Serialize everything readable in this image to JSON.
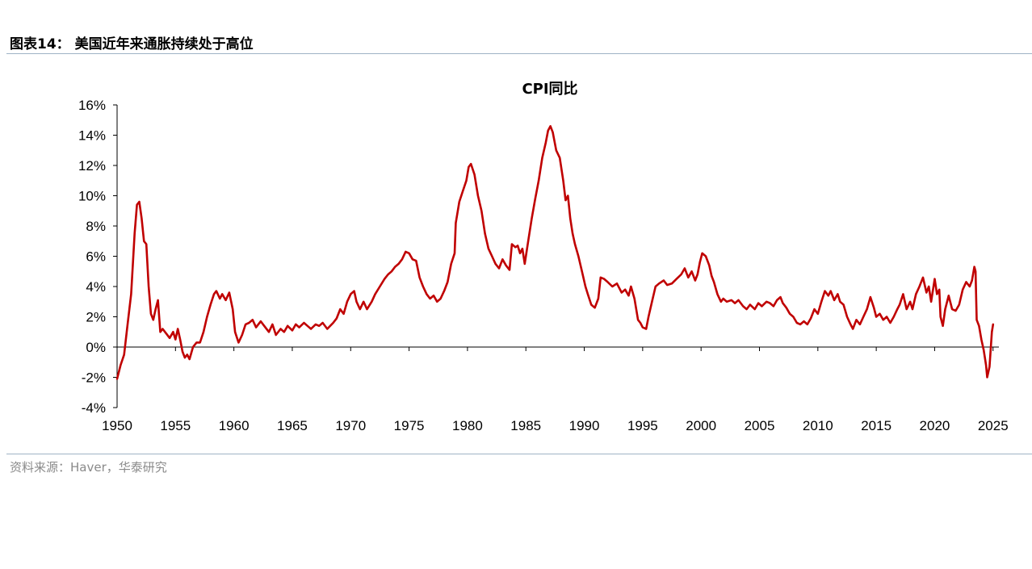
{
  "figure": {
    "title": "图表14： 美国近年来通胀持续处于高位",
    "source": "资料来源：Haver，华泰研究"
  },
  "chart_data": {
    "type": "line",
    "title": "CPI同比",
    "xlabel": "",
    "ylabel": "",
    "xlim": [
      1950,
      2025.5
    ],
    "ylim": [
      -4,
      16
    ],
    "x_ticks": [
      1950,
      1955,
      1960,
      1965,
      1970,
      1975,
      1980,
      1985,
      1990,
      1995,
      2000,
      2005,
      2010,
      2015,
      2020,
      2025
    ],
    "y_ticks": [
      -4,
      -2,
      0,
      2,
      4,
      6,
      8,
      10,
      12,
      14,
      16
    ],
    "y_tick_labels": [
      "-4%",
      "-2%",
      "0%",
      "2%",
      "4%",
      "6%",
      "8%",
      "10%",
      "12%",
      "14%",
      "16%"
    ],
    "x_tick_labels": [
      "1950",
      "1955",
      "1960",
      "1965",
      "1970",
      "1975",
      "1980",
      "1985",
      "1990",
      "1995",
      "2000",
      "2005",
      "2010",
      "2015",
      "2020",
      "2025"
    ],
    "legend": "none",
    "grid": false,
    "series": [
      {
        "color": "#c00000",
        "points": [
          [
            1950.0,
            -2.1
          ],
          [
            1950.3,
            -1.2
          ],
          [
            1950.6,
            -0.5
          ],
          [
            1950.9,
            1.5
          ],
          [
            1951.2,
            3.5
          ],
          [
            1951.5,
            7.5
          ],
          [
            1951.7,
            9.4
          ],
          [
            1951.9,
            9.6
          ],
          [
            1952.1,
            8.5
          ],
          [
            1952.3,
            7.0
          ],
          [
            1952.5,
            6.8
          ],
          [
            1952.7,
            4.0
          ],
          [
            1952.9,
            2.2
          ],
          [
            1953.1,
            1.8
          ],
          [
            1953.3,
            2.5
          ],
          [
            1953.5,
            3.1
          ],
          [
            1953.7,
            1.0
          ],
          [
            1953.9,
            1.2
          ],
          [
            1954.2,
            0.9
          ],
          [
            1954.5,
            0.6
          ],
          [
            1954.8,
            1.0
          ],
          [
            1955.0,
            0.5
          ],
          [
            1955.2,
            1.2
          ],
          [
            1955.4,
            0.5
          ],
          [
            1955.6,
            -0.3
          ],
          [
            1955.8,
            -0.7
          ],
          [
            1956.0,
            -0.5
          ],
          [
            1956.2,
            -0.8
          ],
          [
            1956.5,
            0.0
          ],
          [
            1956.8,
            0.3
          ],
          [
            1957.1,
            0.3
          ],
          [
            1957.4,
            1.0
          ],
          [
            1957.7,
            2.0
          ],
          [
            1958.0,
            2.8
          ],
          [
            1958.3,
            3.5
          ],
          [
            1958.5,
            3.7
          ],
          [
            1958.8,
            3.2
          ],
          [
            1959.0,
            3.5
          ],
          [
            1959.3,
            3.1
          ],
          [
            1959.6,
            3.6
          ],
          [
            1959.9,
            2.5
          ],
          [
            1960.1,
            1.0
          ],
          [
            1960.4,
            0.3
          ],
          [
            1960.7,
            0.8
          ],
          [
            1961.0,
            1.5
          ],
          [
            1961.3,
            1.6
          ],
          [
            1961.6,
            1.8
          ],
          [
            1961.9,
            1.3
          ],
          [
            1962.3,
            1.7
          ],
          [
            1962.6,
            1.4
          ],
          [
            1963.0,
            1.0
          ],
          [
            1963.3,
            1.5
          ],
          [
            1963.6,
            0.8
          ],
          [
            1964.0,
            1.2
          ],
          [
            1964.3,
            1.0
          ],
          [
            1964.6,
            1.4
          ],
          [
            1965.0,
            1.1
          ],
          [
            1965.3,
            1.5
          ],
          [
            1965.6,
            1.3
          ],
          [
            1966.0,
            1.6
          ],
          [
            1966.3,
            1.4
          ],
          [
            1966.6,
            1.2
          ],
          [
            1967.0,
            1.5
          ],
          [
            1967.3,
            1.4
          ],
          [
            1967.6,
            1.6
          ],
          [
            1968.0,
            1.2
          ],
          [
            1968.5,
            1.6
          ],
          [
            1968.8,
            1.9
          ],
          [
            1969.1,
            2.5
          ],
          [
            1969.4,
            2.2
          ],
          [
            1969.7,
            3.0
          ],
          [
            1970.0,
            3.5
          ],
          [
            1970.3,
            3.7
          ],
          [
            1970.5,
            3.0
          ],
          [
            1970.8,
            2.5
          ],
          [
            1971.1,
            3.0
          ],
          [
            1971.4,
            2.5
          ],
          [
            1971.8,
            3.0
          ],
          [
            1972.1,
            3.5
          ],
          [
            1972.5,
            4.0
          ],
          [
            1972.9,
            4.5
          ],
          [
            1973.2,
            4.8
          ],
          [
            1973.5,
            5.0
          ],
          [
            1973.8,
            5.3
          ],
          [
            1974.1,
            5.5
          ],
          [
            1974.4,
            5.8
          ],
          [
            1974.7,
            6.3
          ],
          [
            1975.0,
            6.2
          ],
          [
            1975.3,
            5.8
          ],
          [
            1975.6,
            5.7
          ],
          [
            1975.9,
            4.6
          ],
          [
            1976.2,
            4.0
          ],
          [
            1976.5,
            3.5
          ],
          [
            1976.8,
            3.2
          ],
          [
            1977.1,
            3.4
          ],
          [
            1977.4,
            3.0
          ],
          [
            1977.7,
            3.2
          ],
          [
            1978.0,
            3.7
          ],
          [
            1978.3,
            4.3
          ],
          [
            1978.6,
            5.5
          ],
          [
            1978.9,
            6.2
          ],
          [
            1979.0,
            8.2
          ],
          [
            1979.3,
            9.6
          ],
          [
            1979.6,
            10.3
          ],
          [
            1979.9,
            11.0
          ],
          [
            1980.1,
            11.9
          ],
          [
            1980.3,
            12.1
          ],
          [
            1980.6,
            11.4
          ],
          [
            1980.9,
            10.0
          ],
          [
            1981.2,
            9.0
          ],
          [
            1981.5,
            7.5
          ],
          [
            1981.8,
            6.5
          ],
          [
            1982.1,
            6.0
          ],
          [
            1982.4,
            5.5
          ],
          [
            1982.7,
            5.2
          ],
          [
            1983.0,
            5.8
          ],
          [
            1983.3,
            5.4
          ],
          [
            1983.6,
            5.1
          ],
          [
            1983.8,
            6.8
          ],
          [
            1984.1,
            6.6
          ],
          [
            1984.3,
            6.7
          ],
          [
            1984.5,
            6.2
          ],
          [
            1984.7,
            6.5
          ],
          [
            1984.9,
            5.5
          ],
          [
            1985.2,
            7.0
          ],
          [
            1985.5,
            8.5
          ],
          [
            1985.8,
            9.8
          ],
          [
            1986.1,
            11.0
          ],
          [
            1986.4,
            12.5
          ],
          [
            1986.7,
            13.5
          ],
          [
            1986.9,
            14.3
          ],
          [
            1987.1,
            14.6
          ],
          [
            1987.3,
            14.2
          ],
          [
            1987.6,
            13.0
          ],
          [
            1987.9,
            12.5
          ],
          [
            1988.2,
            11.0
          ],
          [
            1988.4,
            9.7
          ],
          [
            1988.6,
            10.0
          ],
          [
            1988.8,
            8.5
          ],
          [
            1989.0,
            7.5
          ],
          [
            1989.2,
            6.8
          ],
          [
            1989.5,
            6.0
          ],
          [
            1989.8,
            5.0
          ],
          [
            1990.1,
            4.0
          ],
          [
            1990.3,
            3.5
          ],
          [
            1990.6,
            2.8
          ],
          [
            1990.9,
            2.6
          ],
          [
            1991.2,
            3.2
          ],
          [
            1991.4,
            4.6
          ],
          [
            1991.7,
            4.5
          ],
          [
            1992.0,
            4.3
          ],
          [
            1992.4,
            4.0
          ],
          [
            1992.8,
            4.2
          ],
          [
            1993.2,
            3.6
          ],
          [
            1993.5,
            3.8
          ],
          [
            1993.8,
            3.4
          ],
          [
            1994.0,
            4.0
          ],
          [
            1994.3,
            3.2
          ],
          [
            1994.6,
            1.8
          ],
          [
            1994.8,
            1.6
          ],
          [
            1995.0,
            1.3
          ],
          [
            1995.3,
            1.2
          ],
          [
            1995.5,
            2.0
          ],
          [
            1995.8,
            3.0
          ],
          [
            1996.1,
            4.0
          ],
          [
            1996.4,
            4.2
          ],
          [
            1996.8,
            4.4
          ],
          [
            1997.1,
            4.1
          ],
          [
            1997.5,
            4.2
          ],
          [
            1997.9,
            4.5
          ],
          [
            1998.3,
            4.8
          ],
          [
            1998.6,
            5.2
          ],
          [
            1998.9,
            4.6
          ],
          [
            1999.2,
            5.0
          ],
          [
            1999.5,
            4.4
          ],
          [
            1999.7,
            4.8
          ],
          [
            1999.9,
            5.6
          ],
          [
            2000.1,
            6.2
          ],
          [
            2000.4,
            6.0
          ],
          [
            2000.7,
            5.4
          ],
          [
            2000.9,
            4.7
          ],
          [
            2001.1,
            4.3
          ],
          [
            2001.4,
            3.5
          ],
          [
            2001.7,
            3.0
          ],
          [
            2001.9,
            3.2
          ],
          [
            2002.2,
            3.0
          ],
          [
            2002.6,
            3.1
          ],
          [
            2002.9,
            2.9
          ],
          [
            2003.2,
            3.1
          ],
          [
            2003.6,
            2.7
          ],
          [
            2003.9,
            2.5
          ],
          [
            2004.2,
            2.8
          ],
          [
            2004.6,
            2.5
          ],
          [
            2004.9,
            2.9
          ],
          [
            2005.2,
            2.7
          ],
          [
            2005.6,
            3.0
          ],
          [
            2005.9,
            2.9
          ],
          [
            2006.2,
            2.7
          ],
          [
            2006.5,
            3.1
          ],
          [
            2006.8,
            3.3
          ],
          [
            2007.0,
            2.9
          ],
          [
            2007.3,
            2.6
          ],
          [
            2007.6,
            2.2
          ],
          [
            2007.9,
            2.0
          ],
          [
            2008.2,
            1.6
          ],
          [
            2008.5,
            1.5
          ],
          [
            2008.8,
            1.7
          ],
          [
            2009.1,
            1.5
          ],
          [
            2009.4,
            1.9
          ],
          [
            2009.7,
            2.5
          ],
          [
            2010.0,
            2.2
          ],
          [
            2010.3,
            3.0
          ],
          [
            2010.6,
            3.7
          ],
          [
            2010.9,
            3.4
          ],
          [
            2011.1,
            3.7
          ],
          [
            2011.4,
            3.1
          ],
          [
            2011.7,
            3.5
          ],
          [
            2011.9,
            3.0
          ],
          [
            2012.2,
            2.8
          ],
          [
            2012.5,
            2.0
          ],
          [
            2012.8,
            1.5
          ],
          [
            2013.0,
            1.2
          ],
          [
            2013.3,
            1.8
          ],
          [
            2013.6,
            1.5
          ],
          [
            2013.9,
            2.0
          ],
          [
            2014.2,
            2.5
          ],
          [
            2014.5,
            3.3
          ],
          [
            2014.8,
            2.6
          ],
          [
            2015.0,
            2.0
          ],
          [
            2015.3,
            2.2
          ],
          [
            2015.6,
            1.8
          ],
          [
            2015.9,
            2.0
          ],
          [
            2016.2,
            1.6
          ],
          [
            2016.5,
            2.0
          ],
          [
            2016.8,
            2.5
          ],
          [
            2017.0,
            2.8
          ],
          [
            2017.3,
            3.5
          ],
          [
            2017.6,
            2.5
          ],
          [
            2017.9,
            3.0
          ],
          [
            2018.1,
            2.5
          ],
          [
            2018.4,
            3.5
          ],
          [
            2018.7,
            4.0
          ],
          [
            2019.0,
            4.6
          ],
          [
            2019.3,
            3.6
          ],
          [
            2019.5,
            4.0
          ],
          [
            2019.7,
            3.0
          ],
          [
            2020.0,
            4.5
          ],
          [
            2020.2,
            3.5
          ],
          [
            2020.4,
            3.8
          ],
          [
            2020.5,
            2.0
          ],
          [
            2020.7,
            1.4
          ],
          [
            2020.9,
            2.5
          ],
          [
            2021.2,
            3.4
          ],
          [
            2021.5,
            2.5
          ],
          [
            2021.8,
            2.4
          ],
          [
            2022.1,
            2.8
          ],
          [
            2022.4,
            3.8
          ],
          [
            2022.7,
            4.3
          ],
          [
            2023.0,
            4.0
          ],
          [
            2023.2,
            4.4
          ],
          [
            2023.4,
            5.3
          ],
          [
            2023.5,
            5.0
          ],
          [
            2023.6,
            1.8
          ],
          [
            2023.8,
            1.4
          ],
          [
            2024.0,
            0.5
          ],
          [
            2024.2,
            -0.2
          ],
          [
            2024.4,
            -1.2
          ],
          [
            2024.5,
            -2.0
          ],
          [
            2024.7,
            -1.3
          ],
          [
            2024.9,
            1.0
          ],
          [
            2025.0,
            1.5
          ]
        ]
      }
    ]
  }
}
